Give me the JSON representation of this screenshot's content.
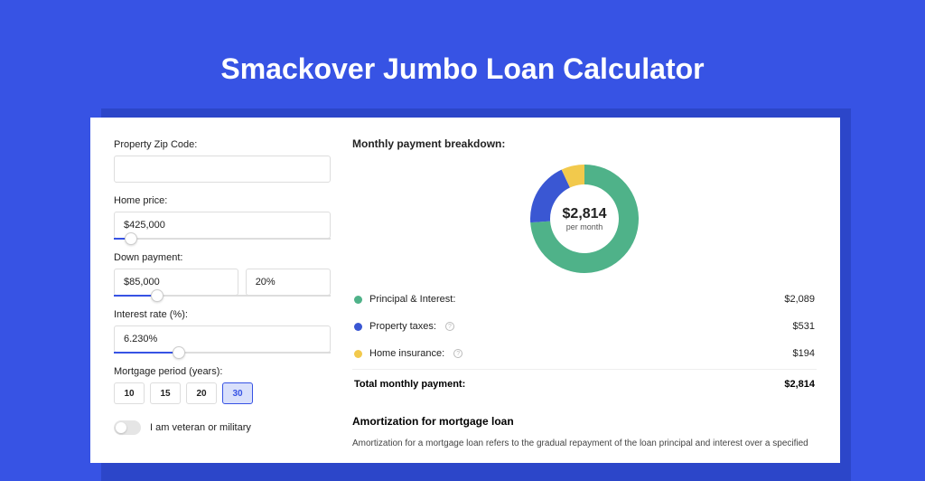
{
  "page": {
    "title": "Smackover Jumbo Loan Calculator",
    "background_color": "#3753e4",
    "shadow_color": "#2c46c9",
    "panel_color": "#ffffff"
  },
  "form": {
    "zip": {
      "label": "Property Zip Code:",
      "value": ""
    },
    "home_price": {
      "label": "Home price:",
      "value": "$425,000",
      "slider_pct": 8
    },
    "down_payment": {
      "label": "Down payment:",
      "value": "$85,000",
      "percent": "20%",
      "slider_pct": 20
    },
    "interest_rate": {
      "label": "Interest rate (%):",
      "value": "6.230%",
      "slider_pct": 30
    },
    "period": {
      "label": "Mortgage period (years):",
      "options": [
        "10",
        "15",
        "20",
        "30"
      ],
      "active": "30"
    },
    "veteran": {
      "label": "I am veteran or military",
      "checked": false
    }
  },
  "breakdown": {
    "title": "Monthly payment breakdown:",
    "center_amount": "$2,814",
    "center_sub": "per month",
    "items": [
      {
        "label": "Principal & Interest:",
        "value": "$2,089",
        "color": "#4fb289",
        "info": false,
        "arc_deg": 266
      },
      {
        "label": "Property taxes:",
        "value": "$531",
        "color": "#3a57d3",
        "info": true,
        "arc_deg": 69
      },
      {
        "label": "Home insurance:",
        "value": "$194",
        "color": "#f2c94c",
        "info": true,
        "arc_deg": 25
      }
    ],
    "total_label": "Total monthly payment:",
    "total_value": "$2,814"
  },
  "amortization": {
    "title": "Amortization for mortgage loan",
    "text": "Amortization for a mortgage loan refers to the gradual repayment of the loan principal and interest over a specified"
  },
  "donut_style": {
    "outer_radius": 60,
    "inner_radius": 38
  }
}
